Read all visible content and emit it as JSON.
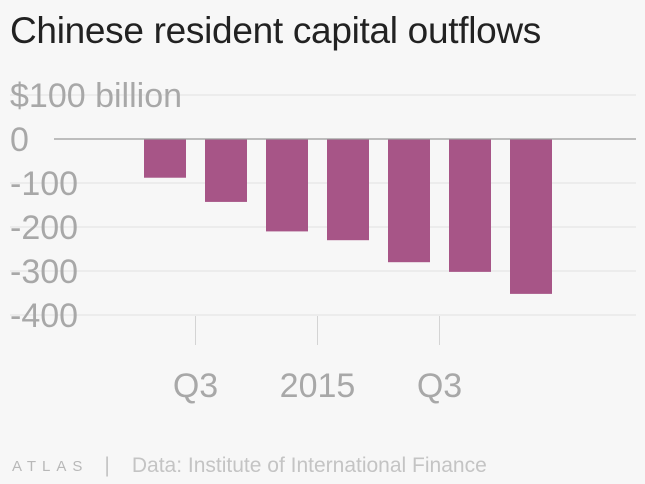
{
  "title": "Chinese resident capital outflows",
  "footer": {
    "brand": "ATLAS",
    "separator": "|",
    "source": "Data: Institute of International Finance"
  },
  "chart_data": {
    "type": "bar",
    "title": "Chinese resident capital outflows",
    "unit_label": "$100 billion",
    "xlabel": "",
    "ylabel": "",
    "ylim": [
      -400,
      100
    ],
    "y_ticks": [
      0,
      -100,
      -200,
      -300,
      -400
    ],
    "y_tick_labels": [
      "0",
      "-100",
      "-200",
      "-300",
      "-400"
    ],
    "x_tick_labels": [
      {
        "after_bar": 1,
        "label": "Q3"
      },
      {
        "after_bar": 3,
        "label": "2015"
      },
      {
        "after_bar": 5,
        "label": "Q3"
      }
    ],
    "values": [
      -88,
      -143,
      -210,
      -230,
      -280,
      -302,
      -352
    ],
    "colors": {
      "bar": "#a75587",
      "grid": "#e2e2e2",
      "zero_line": "#9a9a9a",
      "axis_text": "#a8a8a8",
      "tick_mark": "#d4d4d4"
    },
    "grid": true
  }
}
